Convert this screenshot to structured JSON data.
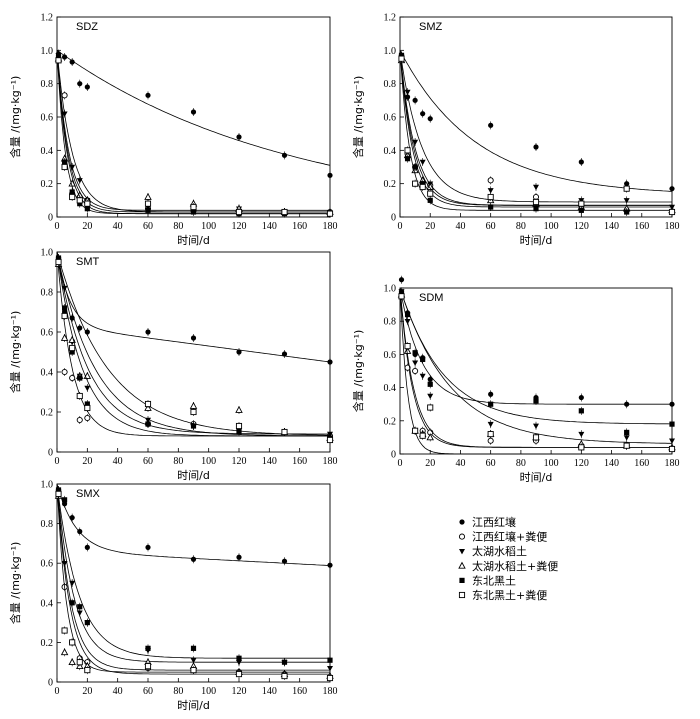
{
  "legend": [
    {
      "label": "江西红壤",
      "marker": "circle-filled"
    },
    {
      "label": "江西红壤+粪便",
      "marker": "circle-open"
    },
    {
      "label": "太湖水稻土",
      "marker": "triangle-down-filled"
    },
    {
      "label": "太湖水稻土+粪便",
      "marker": "triangle-up-open"
    },
    {
      "label": "东北黑土",
      "marker": "square-filled"
    },
    {
      "label": "东北黑土+粪便",
      "marker": "square-open"
    }
  ],
  "chart_data": [
    {
      "type": "scatter",
      "title": "SDZ",
      "xlabel": "时间/d",
      "ylabel": "含量 /(mg·kg⁻¹)",
      "xlim": [
        0,
        180
      ],
      "ylim": [
        0,
        1.2
      ],
      "xticks": [
        "0",
        "20",
        "40",
        "60",
        "80",
        "100",
        "120",
        "140",
        "160",
        "180"
      ],
      "yticks": [
        "0",
        "0.2",
        "0.4",
        "0.6",
        "0.8",
        "1.0",
        "1.2"
      ],
      "series": [
        {
          "name": "江西红壤",
          "x": [
            1,
            5,
            10,
            15,
            20,
            60,
            90,
            120,
            150,
            180
          ],
          "y": [
            0.98,
            0.96,
            0.93,
            0.8,
            0.78,
            0.73,
            0.63,
            0.48,
            0.37,
            0.25
          ],
          "fit": {
            "k": 0.0065
          }
        },
        {
          "name": "江西红壤+粪便",
          "x": [
            1,
            5,
            10,
            15,
            20,
            60,
            90,
            120,
            150,
            180
          ],
          "y": [
            0.95,
            0.73,
            0.14,
            0.12,
            0.1,
            0.05,
            0.04,
            0.03,
            0.03,
            0.03
          ],
          "fit": {
            "k": 0.14,
            "c": 0.03
          }
        },
        {
          "name": "太湖水稻土",
          "x": [
            1,
            5,
            10,
            15,
            20,
            60,
            90,
            120,
            150,
            180
          ],
          "y": [
            0.97,
            0.62,
            0.3,
            0.22,
            0.1,
            0.06,
            0.05,
            0.05,
            0.03,
            0.02
          ],
          "fit": {
            "k": 0.1,
            "c": 0.03
          }
        },
        {
          "name": "太湖水稻土+粪便",
          "x": [
            1,
            5,
            10,
            15,
            20,
            60,
            90,
            120,
            150,
            180
          ],
          "y": [
            0.95,
            0.35,
            0.2,
            0.13,
            0.1,
            0.12,
            0.08,
            0.05,
            0.03,
            0.03
          ],
          "fit": {
            "k": 0.13,
            "c": 0.04
          }
        },
        {
          "name": "东北黑土",
          "x": [
            1,
            5,
            10,
            15,
            20,
            60,
            90,
            120,
            150,
            180
          ],
          "y": [
            0.96,
            0.33,
            0.15,
            0.08,
            0.05,
            0.04,
            0.03,
            0.02,
            0.02,
            0.02
          ],
          "fit": {
            "k": 0.18,
            "c": 0.02
          }
        },
        {
          "name": "东北黑土+粪便",
          "x": [
            1,
            5,
            10,
            15,
            20,
            60,
            90,
            120,
            150,
            180
          ],
          "y": [
            0.94,
            0.3,
            0.12,
            0.1,
            0.08,
            0.08,
            0.06,
            0.03,
            0.03,
            0.02
          ],
          "fit": {
            "k": 0.15,
            "c": 0.02
          }
        }
      ]
    },
    {
      "type": "scatter",
      "title": "SMZ",
      "xlabel": "时间/d",
      "ylabel": "含量 /(mg·kg⁻¹)",
      "xlim": [
        0,
        180
      ],
      "ylim": [
        0,
        1.2
      ],
      "xticks": [
        "0",
        "20",
        "40",
        "60",
        "80",
        "100",
        "120",
        "140",
        "160",
        "180"
      ],
      "yticks": [
        "0",
        "0.2",
        "0.4",
        "0.6",
        "0.8",
        "1.0",
        "1.2"
      ],
      "series": [
        {
          "name": "江西红壤",
          "x": [
            1,
            5,
            10,
            15,
            20,
            60,
            90,
            120,
            150,
            180
          ],
          "y": [
            0.97,
            0.72,
            0.7,
            0.62,
            0.59,
            0.55,
            0.42,
            0.33,
            0.2,
            0.17
          ],
          "fit": {
            "k": 0.02,
            "c": 0.13
          }
        },
        {
          "name": "江西红壤+粪便",
          "x": [
            1,
            5,
            10,
            15,
            20,
            60,
            90,
            120,
            150,
            180
          ],
          "y": [
            0.95,
            0.38,
            0.3,
            0.2,
            0.19,
            0.22,
            0.12,
            0.08,
            0.04,
            0.03
          ],
          "fit": {
            "k": 0.12,
            "c": 0.06
          }
        },
        {
          "name": "太湖水稻土",
          "x": [
            1,
            5,
            10,
            15,
            20,
            60,
            90,
            120,
            150,
            180
          ],
          "y": [
            0.96,
            0.75,
            0.45,
            0.33,
            0.2,
            0.16,
            0.18,
            0.1,
            0.1,
            0.06
          ],
          "fit": {
            "k": 0.07,
            "c": 0.09
          }
        },
        {
          "name": "太湖水稻土+粪便",
          "x": [
            1,
            5,
            10,
            15,
            20,
            60,
            90,
            120,
            150,
            180
          ],
          "y": [
            0.94,
            0.37,
            0.28,
            0.22,
            0.18,
            0.1,
            0.08,
            0.06,
            0.05,
            0.04
          ],
          "fit": {
            "k": 0.1,
            "c": 0.07
          }
        },
        {
          "name": "东北黑土",
          "x": [
            1,
            5,
            10,
            15,
            20,
            60,
            90,
            120,
            150,
            180
          ],
          "y": [
            0.97,
            0.35,
            0.3,
            0.2,
            0.1,
            0.06,
            0.05,
            0.04,
            0.03,
            0.03
          ],
          "fit": {
            "k": 0.15,
            "c": 0.04
          }
        },
        {
          "name": "东北黑土+粪便",
          "x": [
            1,
            5,
            10,
            15,
            20,
            60,
            90,
            120,
            150,
            180
          ],
          "y": [
            0.95,
            0.4,
            0.2,
            0.18,
            0.14,
            0.12,
            0.09,
            0.08,
            0.17,
            0.03
          ],
          "fit": {
            "k": 0.11,
            "c": 0.07
          }
        }
      ]
    },
    {
      "type": "scatter",
      "title": "SMT",
      "xlabel": "时间/d",
      "ylabel": "含量 /(mg·kg⁻¹)",
      "xlim": [
        0,
        180
      ],
      "ylim": [
        0,
        1.0
      ],
      "xticks": [
        "0",
        "20",
        "40",
        "60",
        "80",
        "100",
        "120",
        "140",
        "160",
        "180"
      ],
      "yticks": [
        "0",
        "0.2",
        "0.4",
        "0.6",
        "0.8",
        "1.0"
      ],
      "series": [
        {
          "name": "江西红壤",
          "x": [
            1,
            5,
            10,
            15,
            20,
            60,
            90,
            120,
            150,
            180
          ],
          "y": [
            0.97,
            0.7,
            0.67,
            0.62,
            0.6,
            0.6,
            0.57,
            0.5,
            0.49,
            0.45
          ],
          "fit": {
            "k": 0.12,
            "c": 0.63,
            "slope": -0.001
          }
        },
        {
          "name": "江西红壤+粪便",
          "x": [
            1,
            5,
            10,
            15,
            20,
            60,
            90,
            120,
            150,
            180
          ],
          "y": [
            0.95,
            0.4,
            0.37,
            0.16,
            0.17,
            0.14,
            0.14,
            0.12,
            0.1,
            0.08
          ],
          "fit": {
            "k": 0.1,
            "c": 0.08
          }
        },
        {
          "name": "太湖水稻土",
          "x": [
            1,
            5,
            10,
            15,
            20,
            60,
            90,
            120,
            150,
            180
          ],
          "y": [
            0.96,
            0.82,
            0.55,
            0.38,
            0.32,
            0.16,
            0.13,
            0.11,
            0.1,
            0.09
          ],
          "fit": {
            "k": 0.05,
            "c": 0.09
          }
        },
        {
          "name": "太湖水稻土+粪便",
          "x": [
            1,
            5,
            10,
            15,
            20,
            60,
            90,
            120,
            150,
            180
          ],
          "y": [
            0.94,
            0.57,
            0.56,
            0.38,
            0.38,
            0.22,
            0.23,
            0.21,
            0.1,
            0.07
          ],
          "fit": {
            "k": 0.03,
            "c": 0.08
          }
        },
        {
          "name": "东北黑土",
          "x": [
            1,
            5,
            10,
            15,
            20,
            60,
            90,
            120,
            150,
            180
          ],
          "y": [
            0.97,
            0.72,
            0.5,
            0.37,
            0.24,
            0.14,
            0.13,
            0.1,
            0.1,
            0.07
          ],
          "fit": {
            "k": 0.06,
            "c": 0.08
          }
        },
        {
          "name": "东北黑土+粪便",
          "x": [
            1,
            5,
            10,
            15,
            20,
            60,
            90,
            120,
            150,
            180
          ],
          "y": [
            0.95,
            0.68,
            0.52,
            0.28,
            0.22,
            0.24,
            0.2,
            0.13,
            0.1,
            0.06
          ],
          "fit": {
            "k": 0.04,
            "c": 0.08
          }
        }
      ]
    },
    {
      "type": "scatter",
      "title": "SDM",
      "xlabel": "时间/d",
      "ylabel": "含量 /(mg·kg⁻¹)",
      "xlim": [
        0,
        180
      ],
      "ylim": [
        0,
        1.0
      ],
      "xticks": [
        "0",
        "20",
        "40",
        "60",
        "80",
        "100",
        "120",
        "140",
        "160",
        "180"
      ],
      "yticks": [
        "0",
        "0.2",
        "0.4",
        "0.6",
        "0.8",
        "1.0"
      ],
      "series": [
        {
          "name": "江西红壤",
          "x": [
            1,
            5,
            10,
            15,
            20,
            60,
            90,
            120,
            150,
            180
          ],
          "y": [
            1.05,
            0.85,
            0.6,
            0.58,
            0.45,
            0.36,
            0.34,
            0.34,
            0.3,
            0.3
          ],
          "fit": {
            "k": 0.07,
            "c": 0.3
          }
        },
        {
          "name": "江西红壤+粪便",
          "x": [
            1,
            5,
            10,
            15,
            20,
            60,
            90,
            120,
            150,
            180
          ],
          "y": [
            0.95,
            0.52,
            0.5,
            0.14,
            0.13,
            0.08,
            0.08,
            0.05,
            0.05,
            0.03
          ],
          "fit": {
            "k": 0.12,
            "c": 0.04
          }
        },
        {
          "name": "太湖水稻土",
          "x": [
            1,
            5,
            10,
            15,
            20,
            60,
            90,
            120,
            150,
            180
          ],
          "y": [
            0.98,
            0.8,
            0.55,
            0.47,
            0.35,
            0.18,
            0.17,
            0.12,
            0.1,
            0.08
          ],
          "fit": {
            "k": 0.03,
            "c": 0.06
          }
        },
        {
          "name": "太湖水稻土+粪便",
          "x": [
            1,
            5,
            10,
            15,
            20,
            60,
            90,
            120,
            150,
            180
          ],
          "y": [
            0.96,
            0.62,
            0.14,
            0.12,
            0.1,
            0.12,
            0.1,
            0.06,
            0.05,
            0.04
          ],
          "fit": {
            "k": 0.2,
            "c": 0.0
          }
        },
        {
          "name": "东北黑土",
          "x": [
            1,
            5,
            10,
            15,
            20,
            60,
            90,
            120,
            150,
            180
          ],
          "y": [
            0.97,
            0.84,
            0.61,
            0.57,
            0.42,
            0.3,
            0.32,
            0.26,
            0.13,
            0.18
          ],
          "fit": {
            "k": 0.035,
            "c": 0.18
          }
        },
        {
          "name": "东北黑土+粪便",
          "x": [
            1,
            5,
            10,
            15,
            20,
            60,
            90,
            120,
            150,
            180
          ],
          "y": [
            0.95,
            0.65,
            0.14,
            0.11,
            0.28,
            0.12,
            0.1,
            0.04,
            0.05,
            0.03
          ],
          "fit": {
            "k": 0.11,
            "c": 0.04
          }
        }
      ]
    },
    {
      "type": "scatter",
      "title": "SMX",
      "xlabel": "时间/d",
      "ylabel": "含量 /(mg·kg⁻¹)",
      "xlim": [
        0,
        180
      ],
      "ylim": [
        0,
        1.0
      ],
      "xticks": [
        "0",
        "20",
        "40",
        "60",
        "80",
        "100",
        "120",
        "140",
        "160",
        "180"
      ],
      "yticks": [
        "0",
        "0.2",
        "0.4",
        "0.6",
        "0.8",
        "1.0"
      ],
      "series": [
        {
          "name": "江西红壤",
          "x": [
            1,
            5,
            10,
            15,
            20,
            60,
            90,
            120,
            150,
            180
          ],
          "y": [
            0.97,
            0.9,
            0.83,
            0.76,
            0.68,
            0.68,
            0.62,
            0.63,
            0.61,
            0.59
          ],
          "fit": {
            "k": 0.08,
            "c": 0.66,
            "slope": -0.0004
          }
        },
        {
          "name": "江西红壤+粪便",
          "x": [
            1,
            5,
            10,
            15,
            20,
            60,
            90,
            120,
            150,
            180
          ],
          "y": [
            0.95,
            0.48,
            0.2,
            0.12,
            0.1,
            0.07,
            0.06,
            0.05,
            0.04,
            0.02
          ],
          "fit": {
            "k": 0.12,
            "c": 0.04
          }
        },
        {
          "name": "太湖水稻土",
          "x": [
            1,
            5,
            10,
            15,
            20,
            60,
            90,
            120,
            150,
            180
          ],
          "y": [
            0.96,
            0.6,
            0.5,
            0.35,
            0.3,
            0.16,
            0.11,
            0.1,
            0.1,
            0.07
          ],
          "fit": {
            "k": 0.09,
            "c": 0.1
          }
        },
        {
          "name": "太湖水稻土+粪便",
          "x": [
            1,
            5,
            10,
            15,
            20,
            60,
            90,
            120,
            150,
            180
          ],
          "y": [
            0.94,
            0.15,
            0.1,
            0.08,
            0.08,
            0.1,
            0.08,
            0.05,
            0.04,
            0.03
          ],
          "fit": {
            "k": 0.16,
            "c": 0.05
          }
        },
        {
          "name": "东北黑土",
          "x": [
            1,
            5,
            10,
            15,
            20,
            60,
            90,
            120,
            150,
            180
          ],
          "y": [
            0.97,
            0.92,
            0.4,
            0.38,
            0.3,
            0.17,
            0.17,
            0.12,
            0.1,
            0.11
          ],
          "fit": {
            "k": 0.07,
            "c": 0.12
          }
        },
        {
          "name": "东北黑土+粪便",
          "x": [
            1,
            5,
            10,
            15,
            20,
            60,
            90,
            120,
            150,
            180
          ],
          "y": [
            0.95,
            0.26,
            0.2,
            0.1,
            0.06,
            0.08,
            0.06,
            0.04,
            0.03,
            0.02
          ],
          "fit": {
            "k": 0.11,
            "c": 0.06
          }
        }
      ]
    }
  ]
}
